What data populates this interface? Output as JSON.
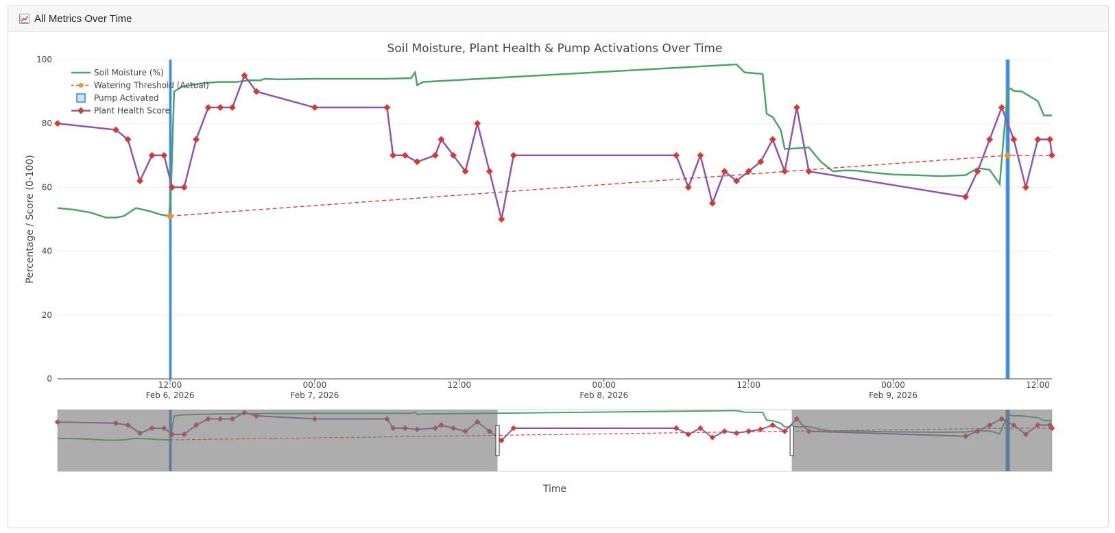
{
  "card": {
    "title": "All Metrics Over Time",
    "icon": "chart-line-icon"
  },
  "colors": {
    "soil": "#4aa564",
    "threshold": "#d9483b",
    "threshold_marker": "#f0923b",
    "pump": "#2e86de",
    "health_line": "#8e54b4",
    "health_marker": "#d63a2f",
    "rangeslider_bg": "#a7a7a7",
    "rangeslider_pump": "#2f5f8f"
  },
  "chart_data": {
    "type": "line",
    "title": "Soil Moisture, Plant Health & Pump Activations Over Time",
    "xlabel": "Time",
    "ylabel": "Percentage / Score (0-100)",
    "ylim": [
      0,
      100
    ],
    "xlim": [
      "2026-02-06 02:40",
      "2026-02-09 13:10"
    ],
    "yticks": [
      0,
      20,
      40,
      60,
      80,
      100
    ],
    "xticks": [
      {
        "t": "2026-02-06 12:00",
        "label": "12:00",
        "sub": "Feb 6, 2026"
      },
      {
        "t": "2026-02-07 00:00",
        "label": "00:00",
        "sub": "Feb 7, 2026"
      },
      {
        "t": "2026-02-07 12:00",
        "label": "12:00",
        "sub": ""
      },
      {
        "t": "2026-02-08 00:00",
        "label": "00:00",
        "sub": "Feb 8, 2026"
      },
      {
        "t": "2026-02-08 12:00",
        "label": "12:00",
        "sub": ""
      },
      {
        "t": "2026-02-09 00:00",
        "label": "00:00",
        "sub": "Feb 9, 2026"
      },
      {
        "t": "2026-02-09 12:00",
        "label": "12:00",
        "sub": ""
      }
    ],
    "grid": true,
    "legend_position": "top-left",
    "series": [
      {
        "name": "Soil Moisture (%)",
        "style": "line",
        "x": [
          "2026-02-06 02:40",
          "2026-02-06 04:00",
          "2026-02-06 05:30",
          "2026-02-06 06:40",
          "2026-02-06 07:30",
          "2026-02-06 08:10",
          "2026-02-06 09:10",
          "2026-02-06 10:20",
          "2026-02-06 11:10",
          "2026-02-06 11:55",
          "2026-02-06 12:05",
          "2026-02-06 12:20",
          "2026-02-06 13:00",
          "2026-02-06 14:30",
          "2026-02-06 16:00",
          "2026-02-06 17:30",
          "2026-02-06 18:30",
          "2026-02-06 19:30",
          "2026-02-06 19:50",
          "2026-02-06 21:00",
          "2026-02-07 00:00",
          "2026-02-07 03:00",
          "2026-02-07 06:00",
          "2026-02-07 08:00",
          "2026-02-07 08:20",
          "2026-02-07 08:30",
          "2026-02-07 09:00",
          "2026-02-08 11:00",
          "2026-02-08 11:40",
          "2026-02-08 13:10",
          "2026-02-08 13:30",
          "2026-02-08 14:00",
          "2026-02-08 14:40",
          "2026-02-08 15:00",
          "2026-02-08 16:00",
          "2026-02-08 17:00",
          "2026-02-08 18:00",
          "2026-02-08 19:00",
          "2026-02-08 20:00",
          "2026-02-08 21:00",
          "2026-02-08 22:00",
          "2026-02-09 00:00",
          "2026-02-09 02:00",
          "2026-02-09 04:00",
          "2026-02-09 06:00",
          "2026-02-09 07:00",
          "2026-02-09 08:00",
          "2026-02-09 08:50",
          "2026-02-09 09:30",
          "2026-02-09 09:45",
          "2026-02-09 10:00",
          "2026-02-09 10:40",
          "2026-02-09 12:00",
          "2026-02-09 12:30",
          "2026-02-09 13:10"
        ],
        "y": [
          53.5,
          53,
          52,
          50.5,
          50.5,
          51,
          53.5,
          52.5,
          51.5,
          51,
          60,
          90,
          91.5,
          92.5,
          93,
          93,
          93.5,
          93.5,
          94,
          93.8,
          94,
          94,
          94,
          94.2,
          96,
          92,
          93,
          98.5,
          96,
          95.5,
          83,
          82,
          78,
          72,
          72.2,
          72.5,
          68,
          65,
          65.3,
          65.2,
          64.7,
          64,
          63.8,
          63.5,
          63.8,
          66,
          65.5,
          61,
          90.5,
          91,
          90.2,
          90,
          87,
          82.5,
          82.5
        ]
      },
      {
        "name": "Watering Threshold (Actual)",
        "style": "dashed-line",
        "x": [
          "2026-02-06 12:00",
          "2026-02-09 09:30",
          "2026-02-09 13:10"
        ],
        "y": [
          51,
          70,
          70
        ]
      },
      {
        "name": "Pump Activated",
        "style": "vertical-bar",
        "x": [
          "2026-02-06 12:00",
          "2026-02-06 12:03",
          "2026-02-09 09:25",
          "2026-02-09 09:30",
          "2026-02-09 09:35"
        ],
        "y": [
          100,
          100,
          100,
          100,
          100
        ]
      },
      {
        "name": "Plant Health Score",
        "style": "line-markers",
        "x": [
          "2026-02-06 02:40",
          "2026-02-06 07:30",
          "2026-02-06 08:30",
          "2026-02-06 09:30",
          "2026-02-06 10:30",
          "2026-02-06 11:30",
          "2026-02-06 12:10",
          "2026-02-06 13:10",
          "2026-02-06 14:10",
          "2026-02-06 15:10",
          "2026-02-06 16:10",
          "2026-02-06 17:10",
          "2026-02-06 18:10",
          "2026-02-06 19:10",
          "2026-02-07 00:00",
          "2026-02-07 06:00",
          "2026-02-07 06:30",
          "2026-02-07 07:30",
          "2026-02-07 08:30",
          "2026-02-07 10:00",
          "2026-02-07 10:30",
          "2026-02-07 11:30",
          "2026-02-07 12:30",
          "2026-02-07 13:30",
          "2026-02-07 14:30",
          "2026-02-07 15:30",
          "2026-02-07 16:30",
          "2026-02-08 06:00",
          "2026-02-08 07:00",
          "2026-02-08 08:00",
          "2026-02-08 09:00",
          "2026-02-08 10:00",
          "2026-02-08 11:00",
          "2026-02-08 12:00",
          "2026-02-08 13:00",
          "2026-02-08 14:00",
          "2026-02-08 15:00",
          "2026-02-08 16:00",
          "2026-02-08 17:00",
          "2026-02-09 06:00",
          "2026-02-09 07:00",
          "2026-02-09 08:00",
          "2026-02-09 09:00",
          "2026-02-09 10:00",
          "2026-02-09 11:00",
          "2026-02-09 12:00",
          "2026-02-09 13:00",
          "2026-02-09 13:10"
        ],
        "y": [
          80,
          78,
          75,
          62,
          70,
          70,
          60,
          60,
          75,
          85,
          85,
          85,
          95,
          90,
          85,
          85,
          70,
          70,
          68,
          70,
          75,
          70,
          65,
          80,
          65,
          50,
          70,
          70,
          60,
          70,
          55,
          65,
          62,
          65,
          68,
          75,
          65,
          85,
          65,
          57,
          65,
          75,
          85,
          75,
          60,
          75,
          75,
          70
        ]
      }
    ],
    "rangeslider": {
      "visible": true
    }
  }
}
